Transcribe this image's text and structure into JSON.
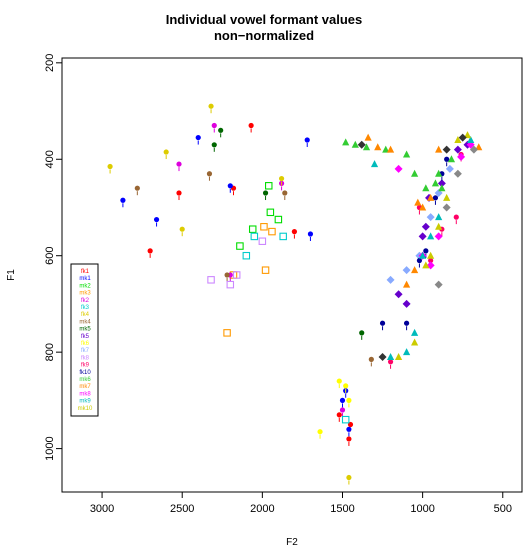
{
  "chart_data": {
    "type": "scatter",
    "title": "Individual vowel formant values",
    "subtitle": "non−normalized",
    "xlabel": "F2",
    "ylabel": "F1",
    "x_reversed": true,
    "y_reversed": true,
    "xlim": [
      3250,
      380
    ],
    "ylim": [
      190,
      1090
    ],
    "x_ticks": [
      3000,
      2500,
      2000,
      1500,
      1000,
      500
    ],
    "y_ticks": [
      200,
      400,
      600,
      800,
      1000
    ],
    "grid": false,
    "legend_position": "bottom-left",
    "series": [
      {
        "name": "fk1",
        "color": "#ff0000",
        "marker": "dot",
        "points": [
          [
            2700,
            590
          ],
          [
            2520,
            470
          ],
          [
            2180,
            460
          ],
          [
            2070,
            330
          ],
          [
            1800,
            550
          ],
          [
            1520,
            930
          ],
          [
            1460,
            980
          ],
          [
            1450,
            950
          ]
        ]
      },
      {
        "name": "mk1",
        "color": "#0000ff",
        "marker": "dot",
        "points": [
          [
            2870,
            485
          ],
          [
            2660,
            525
          ],
          [
            2400,
            355
          ],
          [
            2200,
            455
          ],
          [
            1720,
            360
          ],
          [
            1700,
            555
          ],
          [
            1500,
            900
          ],
          [
            1480,
            880
          ],
          [
            1460,
            960
          ]
        ]
      },
      {
        "name": "mk2",
        "color": "#00dd00",
        "marker": "square",
        "points": [
          [
            2060,
            545
          ],
          [
            1960,
            455
          ],
          [
            1950,
            510
          ],
          [
            1900,
            525
          ],
          [
            2140,
            580
          ]
        ]
      },
      {
        "name": "mk3",
        "color": "#ff9900",
        "marker": "square",
        "points": [
          [
            2220,
            760
          ],
          [
            2180,
            640
          ],
          [
            1990,
            540
          ],
          [
            1980,
            630
          ],
          [
            1940,
            550
          ]
        ]
      },
      {
        "name": "fk2",
        "color": "#dd00dd",
        "marker": "dot",
        "points": [
          [
            2520,
            410
          ],
          [
            2300,
            330
          ],
          [
            2200,
            640
          ],
          [
            1880,
            450
          ],
          [
            1500,
            920
          ]
        ]
      },
      {
        "name": "fk3",
        "color": "#00cccc",
        "marker": "square",
        "points": [
          [
            2100,
            600
          ],
          [
            2050,
            560
          ],
          [
            1870,
            560
          ],
          [
            1480,
            940
          ]
        ]
      },
      {
        "name": "fk4",
        "color": "#ddcc00",
        "marker": "dot",
        "points": [
          [
            2950,
            415
          ],
          [
            2600,
            385
          ],
          [
            2500,
            545
          ],
          [
            2320,
            290
          ],
          [
            1880,
            440
          ],
          [
            1460,
            1060
          ]
        ]
      },
      {
        "name": "mk4",
        "color": "#996633",
        "marker": "dot",
        "points": [
          [
            2780,
            460
          ],
          [
            2330,
            430
          ],
          [
            2220,
            640
          ],
          [
            1860,
            470
          ],
          [
            1320,
            815
          ]
        ]
      },
      {
        "name": "mk5",
        "color": "#006600",
        "marker": "dot",
        "points": [
          [
            2300,
            370
          ],
          [
            2260,
            340
          ],
          [
            1980,
            470
          ],
          [
            1380,
            760
          ]
        ]
      },
      {
        "name": "fk5",
        "color": "#6600cc",
        "marker": "diamond",
        "points": [
          [
            1150,
            680
          ],
          [
            1100,
            700
          ],
          [
            1000,
            560
          ],
          [
            980,
            540
          ],
          [
            960,
            480
          ],
          [
            880,
            450
          ],
          [
            780,
            380
          ],
          [
            720,
            370
          ]
        ]
      },
      {
        "name": "fk6",
        "color": "#ffff00",
        "marker": "dot",
        "points": [
          [
            1640,
            965
          ],
          [
            1520,
            860
          ],
          [
            1480,
            870
          ],
          [
            1460,
            900
          ]
        ]
      },
      {
        "name": "fk7",
        "color": "#88aaff",
        "marker": "diamond",
        "points": [
          [
            1200,
            650
          ],
          [
            1100,
            630
          ],
          [
            1020,
            600
          ],
          [
            950,
            520
          ],
          [
            900,
            470
          ],
          [
            830,
            420
          ]
        ]
      },
      {
        "name": "fk8",
        "color": "#cc88ff",
        "marker": "square",
        "points": [
          [
            2320,
            650
          ],
          [
            2200,
            660
          ],
          [
            2160,
            640
          ],
          [
            2000,
            570
          ]
        ]
      },
      {
        "name": "fk9",
        "color": "#ff0066",
        "marker": "dot",
        "points": [
          [
            1200,
            820
          ],
          [
            1020,
            500
          ],
          [
            950,
            610
          ],
          [
            880,
            545
          ],
          [
            790,
            520
          ],
          [
            760,
            390
          ]
        ]
      },
      {
        "name": "fk10",
        "color": "#000099",
        "marker": "dot",
        "points": [
          [
            1250,
            740
          ],
          [
            1100,
            740
          ],
          [
            1020,
            610
          ],
          [
            980,
            590
          ],
          [
            920,
            480
          ],
          [
            880,
            430
          ],
          [
            850,
            400
          ]
        ]
      },
      {
        "name": "mk6",
        "color": "#33cc33",
        "marker": "triangle",
        "points": [
          [
            1480,
            365
          ],
          [
            1420,
            370
          ],
          [
            1350,
            375
          ],
          [
            1230,
            380
          ],
          [
            1100,
            390
          ],
          [
            1050,
            430
          ],
          [
            980,
            460
          ],
          [
            920,
            450
          ],
          [
            900,
            430
          ],
          [
            880,
            460
          ],
          [
            820,
            400
          ]
        ]
      },
      {
        "name": "mk7",
        "color": "#ff8800",
        "marker": "triangle",
        "points": [
          [
            1340,
            355
          ],
          [
            1280,
            375
          ],
          [
            1200,
            380
          ],
          [
            1100,
            660
          ],
          [
            1050,
            630
          ],
          [
            1030,
            490
          ],
          [
            1000,
            500
          ],
          [
            950,
            480
          ],
          [
            900,
            380
          ],
          [
            650,
            375
          ]
        ]
      },
      {
        "name": "mk8",
        "color": "#ff00ff",
        "marker": "diamond",
        "points": [
          [
            1150,
            420
          ],
          [
            1000,
            600
          ],
          [
            950,
            620
          ],
          [
            900,
            560
          ],
          [
            760,
            395
          ],
          [
            700,
            370
          ]
        ]
      },
      {
        "name": "mk9",
        "color": "#00bbbb",
        "marker": "triangle",
        "points": [
          [
            1300,
            410
          ],
          [
            1200,
            810
          ],
          [
            1100,
            800
          ],
          [
            1050,
            760
          ],
          [
            1000,
            600
          ],
          [
            950,
            560
          ],
          [
            900,
            520
          ],
          [
            700,
            360
          ]
        ]
      },
      {
        "name": "mk10",
        "color": "#cccc00",
        "marker": "triangle",
        "points": [
          [
            1150,
            810
          ],
          [
            1050,
            780
          ],
          [
            980,
            620
          ],
          [
            950,
            600
          ],
          [
            900,
            540
          ],
          [
            850,
            480
          ],
          [
            780,
            360
          ],
          [
            720,
            350
          ]
        ]
      },
      {
        "name": "",
        "color": "#888888",
        "marker": "diamond",
        "points": [
          [
            900,
            660
          ],
          [
            850,
            500
          ],
          [
            780,
            430
          ],
          [
            680,
            380
          ]
        ]
      },
      {
        "name": "",
        "color": "#333333",
        "marker": "diamond",
        "points": [
          [
            1380,
            370
          ],
          [
            1250,
            810
          ],
          [
            850,
            380
          ],
          [
            750,
            355
          ]
        ]
      }
    ]
  }
}
